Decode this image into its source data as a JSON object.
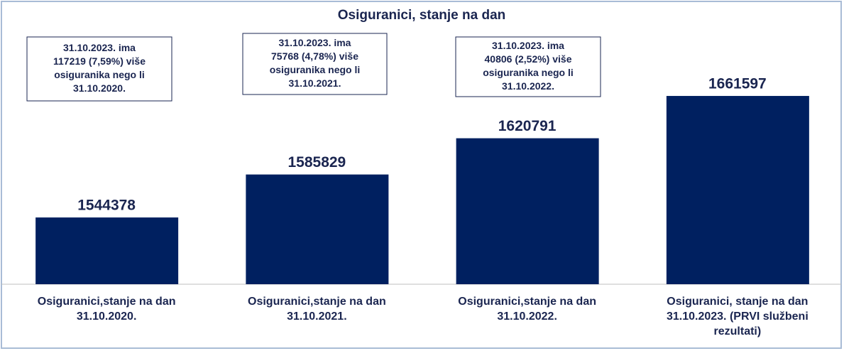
{
  "chart_data": {
    "type": "bar",
    "title": "Osiguranici, stanje na dan",
    "categories": [
      "Osiguranici,stanje na dan 31.10.2020.",
      "Osiguranici,stanje na dan 31.10.2021.",
      "Osiguranici,stanje na dan 31.10.2022.",
      "Osiguranici, stanje na dan 31.10.2023. (PRVI službeni rezultati)"
    ],
    "values": [
      1544378,
      1585829,
      1620791,
      1661597
    ],
    "color": "#002060",
    "ylim": [
      1480000,
      1700000
    ],
    "annotations": [
      [
        "31.10.2023. ima",
        "117219 (7,59%) više",
        "osiguranika nego li",
        "31.10.2020."
      ],
      [
        "31.10.2023. ima",
        "75768  (4,78%) više",
        "osiguranika nego li",
        "31.10.2021."
      ],
      [
        "31.10.2023. ima",
        "40806 (2,52%) više",
        "osiguranika nego li",
        "31.10.2022."
      ]
    ]
  }
}
